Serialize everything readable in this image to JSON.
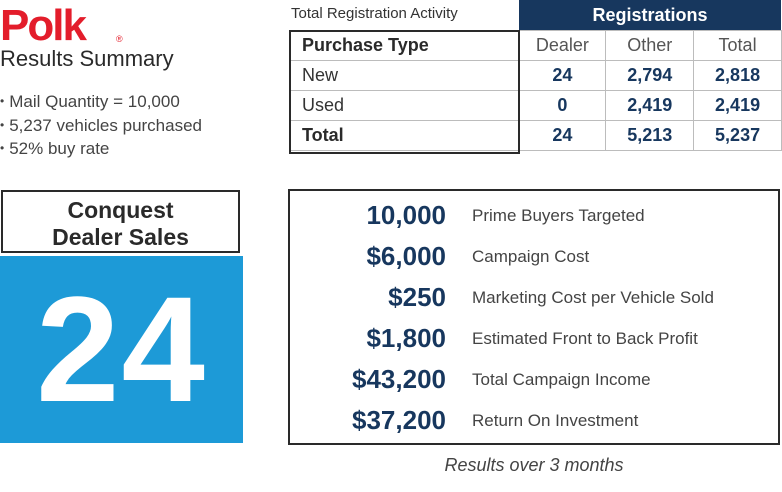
{
  "logo": {
    "text": "Polk",
    "registered_mark": "®"
  },
  "summary": {
    "title": "Results Summary",
    "bullets": [
      "Mail Quantity = 10,000",
      "5,237 vehicles purchased",
      "52% buy rate"
    ]
  },
  "conquest": {
    "label_line1": "Conquest",
    "label_line2": "Dealer Sales",
    "value": "24"
  },
  "registration": {
    "caption": "Total Registration Activity",
    "header": "Registrations",
    "columns": [
      "Purchase Type",
      "Dealer",
      "Other",
      "Total"
    ],
    "rows": [
      {
        "type": "New",
        "dealer": "24",
        "other": "2,794",
        "total": "2,818"
      },
      {
        "type": "Used",
        "dealer": "0",
        "other": "2,419",
        "total": "2,419"
      },
      {
        "type": "Total",
        "dealer": "24",
        "other": "5,213",
        "total": "5,237"
      }
    ]
  },
  "results": [
    {
      "value": "10,000",
      "label": "Prime Buyers Targeted"
    },
    {
      "value": "$6,000",
      "label": "Campaign Cost"
    },
    {
      "value": "$250",
      "label": "Marketing Cost per Vehicle Sold"
    },
    {
      "value": "$1,800",
      "label": "Estimated Front to Back Profit"
    },
    {
      "value": "$43,200",
      "label": "Total Campaign Income"
    },
    {
      "value": "$37,200",
      "label": "Return On Investment"
    }
  ],
  "footnote": "Results over 3 months",
  "colors": {
    "logo_red": "#e31d2b",
    "navy": "#17375e",
    "accent_blue": "#1d9ad7"
  }
}
